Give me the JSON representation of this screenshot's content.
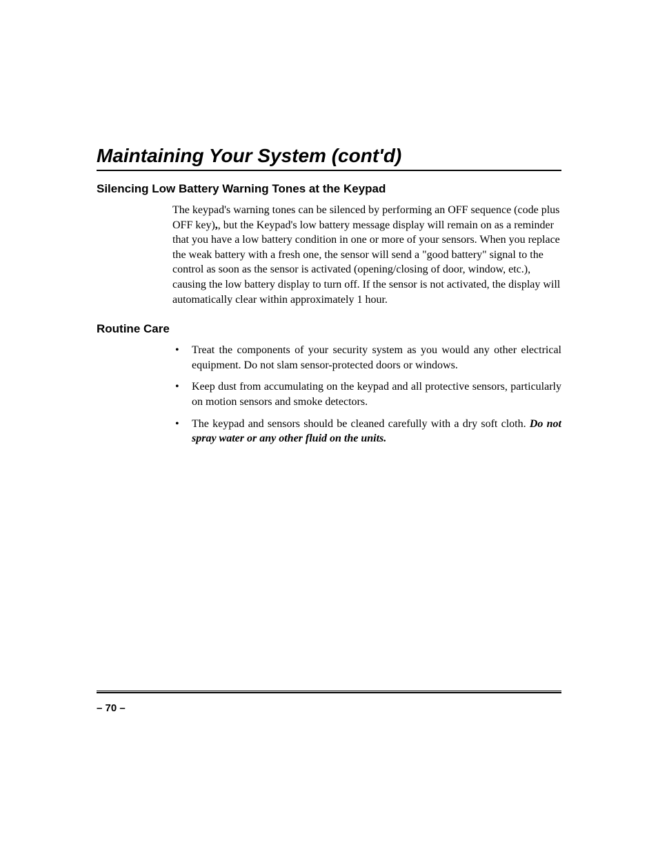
{
  "colors": {
    "background": "#ffffff",
    "text": "#000000",
    "rule": "#000000"
  },
  "typography": {
    "title_fontsize": 28,
    "heading_fontsize": 17,
    "body_fontsize": 16,
    "pagenum_fontsize": 15,
    "title_font": "Arial",
    "body_font": "Century Schoolbook"
  },
  "title": "Maintaining Your System (cont'd)",
  "sections": {
    "s1": {
      "heading": "Silencing Low Battery Warning Tones at the Keypad",
      "para_a": "The keypad's warning tones can be silenced by performing an OFF sequence (code plus OFF key)",
      "para_b": ", but the Keypad's low battery message display will remain on as a reminder that you have a low battery condition in one or more of your sensors. When you replace the weak battery with a fresh one, the sensor will send a \"good battery\" signal to the control as soon as the sensor is activated (opening/closing of door, window, etc.), causing the low battery display to turn off. If the sensor is not activated, the display will automatically clear within approximately 1 hour."
    },
    "s2": {
      "heading": "Routine Care",
      "bullets": {
        "b1": "Treat the components of your security system as you would any other electrical equipment. Do not slam sensor-protected doors or windows.",
        "b2": "Keep dust from accumulating on the keypad and all protective sensors, particularly on motion sensors and smoke detectors.",
        "b3a": "The keypad and sensors should be cleaned carefully with a dry soft cloth. ",
        "b3b": "Do not spray water or any other fluid on the units."
      }
    }
  },
  "page_number": "– 70 –"
}
